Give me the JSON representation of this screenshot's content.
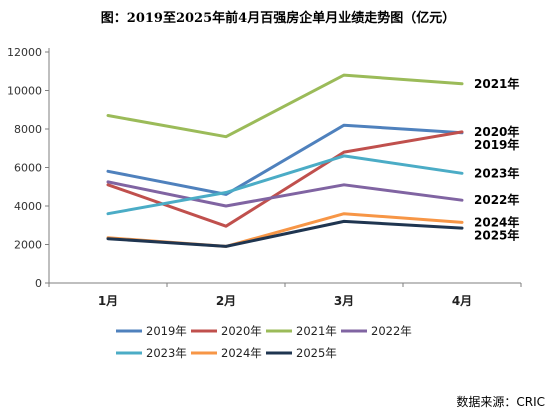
{
  "title": "图：2019至2025年前4月百强房企单月业绩走势图（亿元）",
  "source": "数据来源：CRIC",
  "chart_data": {
    "type": "line",
    "categories": [
      "1月",
      "2月",
      "3月",
      "4月"
    ],
    "ylim": [
      0,
      12000
    ],
    "yticks": [
      0,
      2000,
      4000,
      6000,
      8000,
      10000,
      12000
    ],
    "grid": false,
    "legend_position": "bottom",
    "series": [
      {
        "name": "2019年",
        "color": "#4f81bd",
        "values": [
          5800,
          4600,
          8200,
          7800
        ]
      },
      {
        "name": "2020年",
        "color": "#c0504d",
        "values": [
          5100,
          2950,
          6800,
          7850
        ]
      },
      {
        "name": "2021年",
        "color": "#9bbb59",
        "values": [
          8700,
          7600,
          10800,
          10350
        ]
      },
      {
        "name": "2022年",
        "color": "#8064a2",
        "values": [
          5250,
          4000,
          5100,
          4300
        ]
      },
      {
        "name": "2023年",
        "color": "#4bacc6",
        "values": [
          3600,
          4700,
          6600,
          5700
        ]
      },
      {
        "name": "2024年",
        "color": "#f79646",
        "values": [
          2350,
          1900,
          3600,
          3150
        ]
      },
      {
        "name": "2025年",
        "color": "#1f3550",
        "values": [
          2300,
          1900,
          3200,
          2850
        ]
      }
    ],
    "end_labels": [
      {
        "series": "2021年",
        "text": "2021年"
      },
      {
        "series": "2020年",
        "text": "2020年"
      },
      {
        "series": "2019年",
        "text": "2019年"
      },
      {
        "series": "2023年",
        "text": "2023年"
      },
      {
        "series": "2022年",
        "text": "2022年"
      },
      {
        "series": "2024年",
        "text": "2024年"
      },
      {
        "series": "2025年",
        "text": "2025年"
      }
    ]
  }
}
